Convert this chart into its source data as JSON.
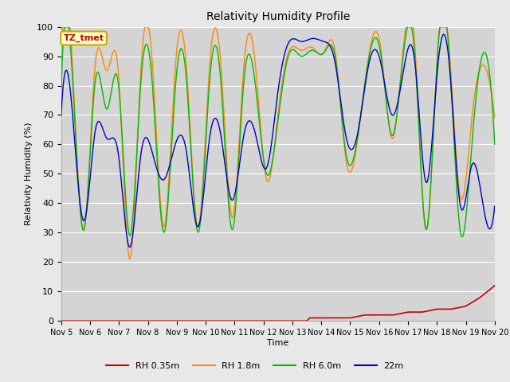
{
  "title": "Relativity Humidity Profile",
  "xlabel": "Time",
  "ylabel": "Relativity Humidity (%)",
  "ylim": [
    0,
    100
  ],
  "annotation": "TZ_tmet",
  "legend": [
    "RH 0.35m",
    "RH 1.8m",
    "RH 6.0m",
    "22m"
  ],
  "colors": [
    "#cc0000",
    "#ff8800",
    "#00bb00",
    "#0000cc"
  ],
  "bg_color": "#e8e8e8",
  "plot_bg_color": "#d4d4d4",
  "x_ticks": [
    "Nov 5",
    "Nov 6",
    "Nov 7",
    "Nov 8",
    "Nov 9",
    "Nov 10",
    "Nov 11",
    "Nov 12",
    "Nov 13",
    "Nov 14",
    "Nov 15",
    "Nov 16",
    "Nov 17",
    "Nov 18",
    "Nov 19",
    "Nov 20"
  ],
  "orange_pts": [
    90,
    86,
    31,
    88,
    85,
    85,
    21,
    86,
    87,
    32,
    86,
    85,
    32,
    86,
    87,
    35,
    86,
    88,
    48,
    70,
    92,
    92,
    93,
    91,
    92,
    54,
    62,
    91,
    93,
    62,
    93,
    94,
    31,
    92,
    93,
    42,
    69,
    87,
    69
  ],
  "green_pts": [
    79,
    82,
    31,
    82,
    72,
    81,
    29,
    82,
    80,
    30,
    79,
    81,
    30,
    81,
    81,
    31,
    81,
    81,
    50,
    68,
    91,
    90,
    92,
    91,
    90,
    56,
    63,
    90,
    91,
    63,
    91,
    90,
    31,
    91,
    91,
    30,
    60,
    91,
    60
  ],
  "blue_pts": [
    70,
    70,
    34,
    65,
    62,
    57,
    25,
    57,
    57,
    48,
    60,
    57,
    32,
    62,
    63,
    41,
    63,
    64,
    52,
    78,
    95,
    95,
    96,
    95,
    88,
    62,
    64,
    88,
    88,
    70,
    85,
    88,
    47,
    86,
    88,
    39,
    53,
    39,
    39
  ],
  "red_pts_x": [
    8.5,
    8.6,
    9.0,
    9.5,
    10.0,
    10.5,
    11.0,
    11.5,
    12.0,
    12.5,
    13.0,
    13.5,
    14.0,
    14.5,
    15.0
  ],
  "red_pts_y": [
    0,
    1,
    1,
    1,
    1,
    2,
    2,
    2,
    3,
    3,
    4,
    4,
    5,
    8,
    12
  ],
  "n_points": 500
}
